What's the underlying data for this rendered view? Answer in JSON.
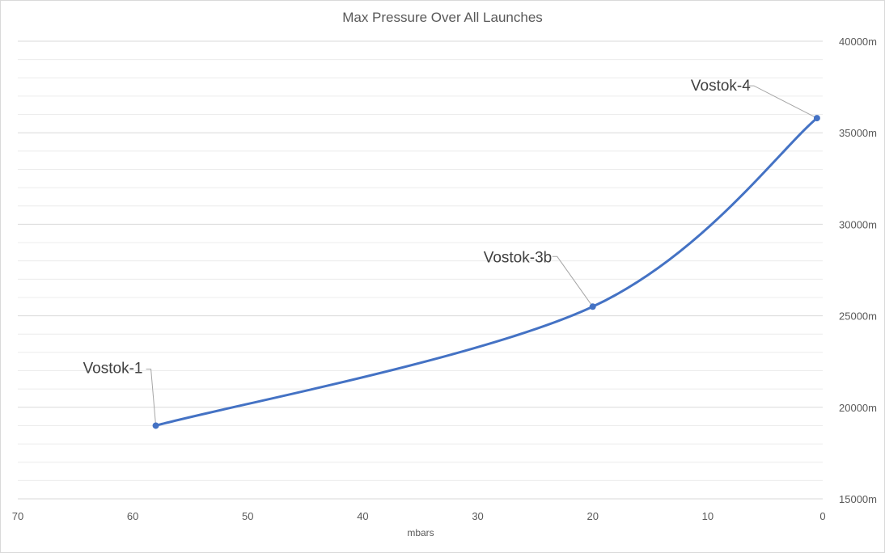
{
  "chart_data": {
    "type": "scatter",
    "title": "Max Pressure Over All Launches",
    "xlabel": "mbars",
    "ylabel": "",
    "x_axis_reversed": true,
    "xlim": [
      0,
      70
    ],
    "ylim": [
      15000,
      40000
    ],
    "x_ticks": [
      "70",
      "60",
      "50",
      "40",
      "30",
      "20",
      "10",
      "0"
    ],
    "y_ticks": [
      "15000m",
      "20000m",
      "25000m",
      "30000m",
      "35000m",
      "40000m"
    ],
    "y_tick_values": [
      15000,
      20000,
      25000,
      30000,
      35000,
      40000
    ],
    "x_tick_values": [
      70,
      60,
      50,
      40,
      30,
      20,
      10,
      0
    ],
    "grid": true,
    "smooth_line": true,
    "legend": "none",
    "series": [
      {
        "points": [
          {
            "x": 58,
            "y": 19000,
            "label": "Vostok-1"
          },
          {
            "x": 20,
            "y": 25500,
            "label": "Vostok-3b"
          },
          {
            "x": 0.5,
            "y": 35800,
            "label": "Vostok-4"
          }
        ],
        "color": "#4472c4"
      }
    ]
  }
}
